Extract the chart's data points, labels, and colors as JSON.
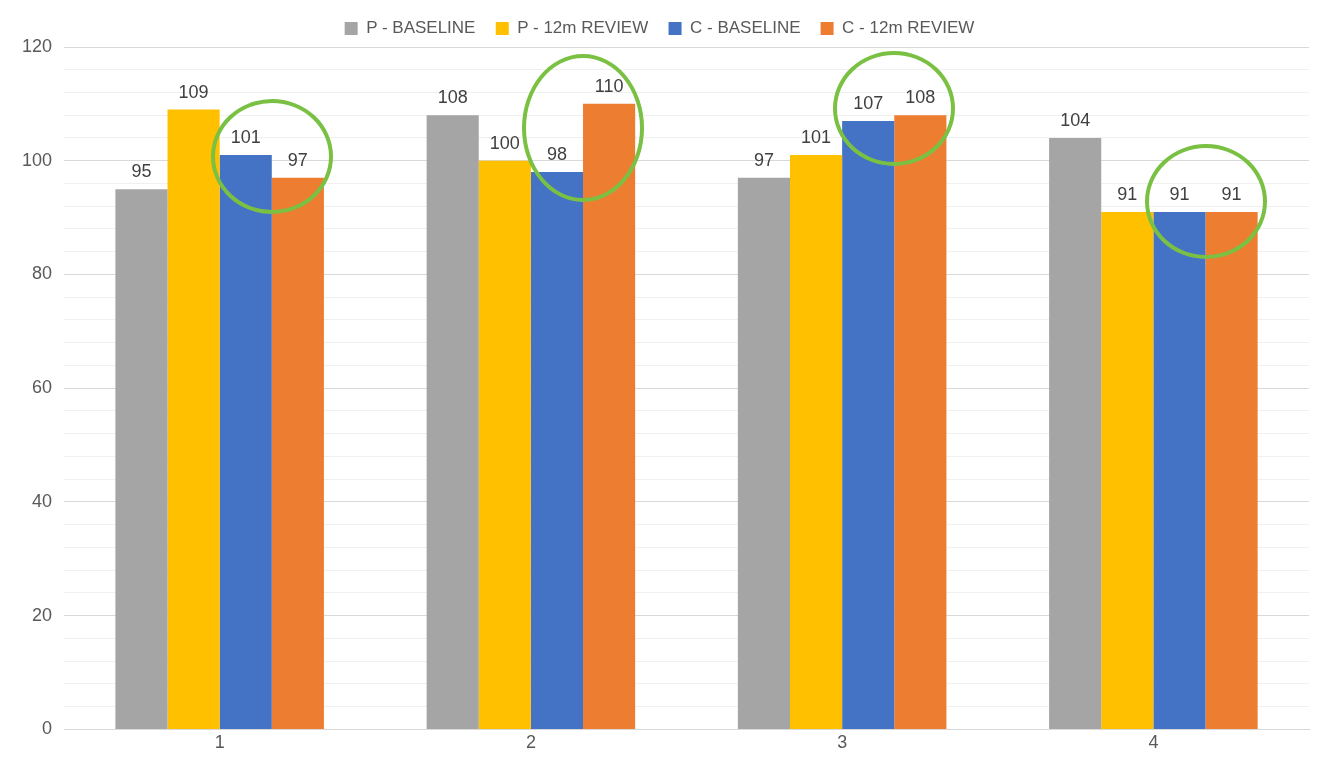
{
  "chart_data": {
    "type": "bar",
    "categories": [
      "1",
      "2",
      "3",
      "4"
    ],
    "series": [
      {
        "name": "P - BASELINE",
        "color": "#a5a5a5",
        "values": [
          95,
          108,
          97,
          104
        ]
      },
      {
        "name": "P - 12m REVIEW",
        "color": "#ffc000",
        "values": [
          109,
          100,
          101,
          91
        ]
      },
      {
        "name": "C - BASELINE",
        "color": "#4472c4",
        "values": [
          101,
          98,
          107,
          91
        ]
      },
      {
        "name": "C - 12m REVIEW",
        "color": "#ed7d31",
        "values": [
          97,
          110,
          108,
          91
        ]
      }
    ],
    "ylim": [
      0,
      120
    ],
    "yticks": [
      0,
      {
        "value": 4,
        "label": null
      },
      {
        "value": 8,
        "label": null
      },
      {
        "value": 12,
        "label": null
      },
      {
        "value": 16,
        "label": null
      },
      20,
      {
        "value": 24,
        "label": null
      },
      {
        "value": 28,
        "label": null
      },
      {
        "value": 32,
        "label": null
      },
      {
        "value": 36,
        "label": null
      },
      40,
      {
        "value": 44,
        "label": null
      },
      {
        "value": 48,
        "label": null
      },
      {
        "value": 52,
        "label": null
      },
      {
        "value": 56,
        "label": null
      },
      60,
      {
        "value": 64,
        "label": null
      },
      {
        "value": 68,
        "label": null
      },
      {
        "value": 72,
        "label": null
      },
      {
        "value": 76,
        "label": null
      },
      80,
      {
        "value": 84,
        "label": null
      },
      {
        "value": 88,
        "label": null
      },
      {
        "value": 92,
        "label": null
      },
      {
        "value": 96,
        "label": null
      },
      100,
      {
        "value": 104,
        "label": null
      },
      {
        "value": 108,
        "label": null
      },
      {
        "value": 112,
        "label": null
      },
      {
        "value": 116,
        "label": null
      },
      120
    ],
    "grid": "y",
    "legend": "top",
    "data_labels": true
  }
}
